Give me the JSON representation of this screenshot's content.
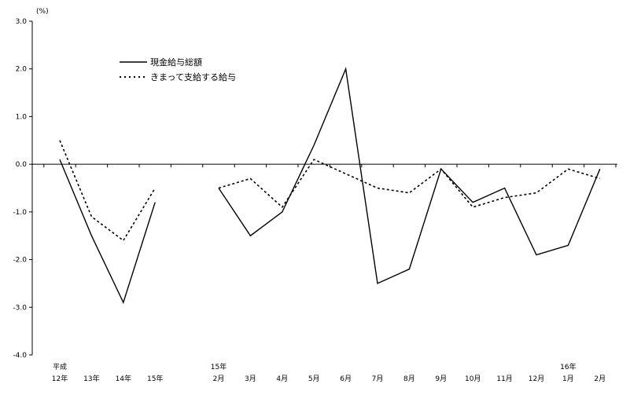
{
  "chart_data": {
    "type": "line",
    "unit_label": "(%)",
    "ylim": [
      -4.0,
      3.0
    ],
    "y_ticks": [
      "3.0",
      "2.0",
      "1.0",
      "0.0",
      "-1.0",
      "-2.0",
      "-3.0",
      "-4.0"
    ],
    "grid": false,
    "legend_position": "top-left",
    "categories": [
      {
        "top": "平成",
        "bottom": "12年"
      },
      {
        "top": "",
        "bottom": "13年"
      },
      {
        "top": "",
        "bottom": "14年"
      },
      {
        "top": "",
        "bottom": "15年"
      },
      {
        "top": "",
        "bottom": ""
      },
      {
        "top": "15年",
        "bottom": "2月"
      },
      {
        "top": "",
        "bottom": "3月"
      },
      {
        "top": "",
        "bottom": "4月"
      },
      {
        "top": "",
        "bottom": "5月"
      },
      {
        "top": "",
        "bottom": "6月"
      },
      {
        "top": "",
        "bottom": "7月"
      },
      {
        "top": "",
        "bottom": "8月"
      },
      {
        "top": "",
        "bottom": "9月"
      },
      {
        "top": "",
        "bottom": "10月"
      },
      {
        "top": "",
        "bottom": "11月"
      },
      {
        "top": "",
        "bottom": "12月"
      },
      {
        "top": "16年",
        "bottom": "1月"
      },
      {
        "top": "",
        "bottom": "2月"
      }
    ],
    "series": [
      {
        "name": "現金給与総額",
        "style": "solid",
        "color": "#000000",
        "values": [
          0.1,
          -1.5,
          -2.9,
          -0.8,
          null,
          -0.5,
          -1.5,
          -1.0,
          0.4,
          2.0,
          -2.5,
          -2.2,
          -0.1,
          -0.8,
          -0.5,
          -1.9,
          -1.7,
          -0.1
        ]
      },
      {
        "name": "きまって支給する給与",
        "style": "dotted",
        "color": "#000000",
        "values": [
          0.5,
          -1.1,
          -1.6,
          -0.5,
          null,
          -0.5,
          -0.3,
          -0.9,
          0.1,
          -0.2,
          -0.5,
          -0.6,
          -0.1,
          -0.9,
          -0.7,
          -0.6,
          -0.1,
          -0.3
        ]
      }
    ]
  }
}
